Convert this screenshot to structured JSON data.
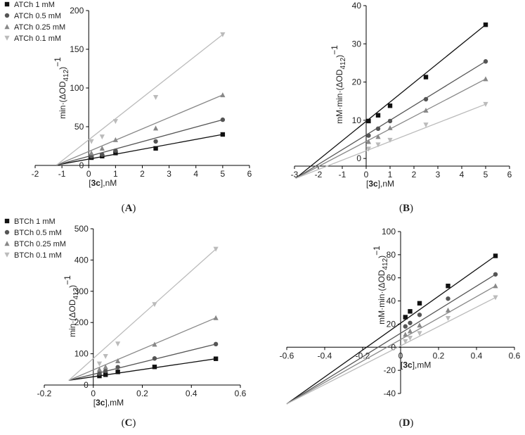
{
  "colors": {
    "series": [
      "#111111",
      "#555555",
      "#888888",
      "#bbbbbb"
    ],
    "axis": "#000000"
  },
  "chart_data": [
    {
      "panel": "A",
      "panel_label": "(A)",
      "type": "scatter",
      "fit_lines": true,
      "legend_position": "top-left",
      "xlabel_prefix": "[3c]",
      "xlabel_suffix": ",nM",
      "ylabel": "min·(ΔOD412)−1",
      "xlim": [
        -2,
        6
      ],
      "ylim": [
        0,
        200
      ],
      "xticks": [
        -2,
        -1,
        0,
        1,
        2,
        3,
        4,
        5,
        6
      ],
      "yticks": [
        0,
        50,
        100,
        150,
        200
      ],
      "fit_x_start": -1.2,
      "series": [
        {
          "name": "ATCh 1 mM",
          "marker": "square",
          "x": [
            0.1,
            0.5,
            1,
            2.5,
            5
          ],
          "y": [
            10,
            12,
            16,
            22,
            40
          ],
          "line": [
            [
              -1.2,
              0.5
            ],
            [
              5,
              40
            ]
          ]
        },
        {
          "name": "ATCh 0.5 mM",
          "marker": "circle",
          "x": [
            0.1,
            0.5,
            1,
            2.5,
            5
          ],
          "y": [
            12,
            14,
            19,
            31,
            59
          ],
          "line": [
            [
              -1.2,
              0.5
            ],
            [
              5,
              59
            ]
          ]
        },
        {
          "name": "ATCh 0.25 mM",
          "marker": "triangle-up",
          "x": [
            0.1,
            0.5,
            1,
            2.5,
            5
          ],
          "y": [
            16,
            22,
            33,
            48,
            91
          ],
          "line": [
            [
              -1.2,
              0.5
            ],
            [
              5,
              91
            ]
          ]
        },
        {
          "name": "ATCh 0.1 mM",
          "marker": "triangle-down",
          "x": [
            0.1,
            0.5,
            1,
            2.5,
            5
          ],
          "y": [
            31,
            37,
            57,
            88,
            169
          ],
          "line": [
            [
              -1.2,
              0.5
            ],
            [
              5,
              169
            ]
          ]
        }
      ]
    },
    {
      "panel": "B",
      "panel_label": "(B)",
      "type": "scatter",
      "fit_lines": true,
      "legend_position": "none",
      "xlabel_prefix": "[3c]",
      "xlabel_suffix": ",nM",
      "ylabel": "mM·min·(ΔOD412)−1",
      "xlim": [
        -3,
        6
      ],
      "ylim": [
        -2,
        40
      ],
      "xticks": [
        -3,
        -2,
        -1,
        0,
        1,
        2,
        3,
        4,
        5,
        6
      ],
      "yticks": [
        0,
        10,
        20,
        30,
        40
      ],
      "series": [
        {
          "name": "ATCh 1 mM",
          "marker": "square",
          "x": [
            0.1,
            0.5,
            1,
            2.5,
            5
          ],
          "y": [
            9.8,
            11.3,
            13.8,
            21.3,
            35
          ],
          "line": [
            [
              -2.95,
              -5.2
            ],
            [
              5,
              35
            ]
          ]
        },
        {
          "name": "ATCh 0.5 mM",
          "marker": "circle",
          "x": [
            0.1,
            0.5,
            1,
            2.5,
            5
          ],
          "y": [
            6,
            7.8,
            9.8,
            15.5,
            25.4
          ],
          "line": [
            [
              -2.95,
              -5.2
            ],
            [
              5,
              25.4
            ]
          ]
        },
        {
          "name": "ATCh 0.25 mM",
          "marker": "triangle-up",
          "x": [
            0.1,
            0.5,
            1,
            2.5,
            5
          ],
          "y": [
            4.4,
            5.7,
            8,
            12.6,
            20.8
          ],
          "line": [
            [
              -2.95,
              -5.2
            ],
            [
              5,
              20.8
            ]
          ]
        },
        {
          "name": "ATCh 0.1 mM",
          "marker": "triangle-down",
          "x": [
            0.1,
            0.5,
            1,
            2.5,
            5
          ],
          "y": [
            2.5,
            3.6,
            4.8,
            8.8,
            14.2
          ],
          "line": [
            [
              -2.95,
              -5.2
            ],
            [
              5,
              14.2
            ]
          ]
        }
      ]
    },
    {
      "panel": "C",
      "panel_label": "(C)",
      "type": "scatter",
      "fit_lines": true,
      "legend_position": "top-left",
      "xlabel_prefix": "[3c]",
      "xlabel_suffix": ",mM",
      "ylabel": "min·(ΔOD412)−1",
      "xlim": [
        -0.2,
        0.6
      ],
      "ylim": [
        0,
        500
      ],
      "xticks": [
        -0.2,
        0,
        0.2,
        0.4,
        0.6
      ],
      "yticks": [
        0,
        100,
        200,
        300,
        400,
        500
      ],
      "series": [
        {
          "name": "BTCh 1 mM",
          "marker": "square",
          "x": [
            0.025,
            0.05,
            0.1,
            0.25,
            0.5
          ],
          "y": [
            29,
            33,
            42,
            58,
            84
          ],
          "line": [
            [
              -0.1,
              15
            ],
            [
              0.5,
              84
            ]
          ]
        },
        {
          "name": "BTCh 0.5 mM",
          "marker": "circle",
          "x": [
            0.025,
            0.05,
            0.1,
            0.25,
            0.5
          ],
          "y": [
            37,
            45,
            57,
            85,
            131
          ],
          "line": [
            [
              -0.1,
              15
            ],
            [
              0.5,
              131
            ]
          ]
        },
        {
          "name": "BTCh 0.25 mM",
          "marker": "triangle-up",
          "x": [
            0.025,
            0.05,
            0.1,
            0.25,
            0.5
          ],
          "y": [
            50,
            58,
            77,
            130,
            215
          ],
          "line": [
            [
              -0.1,
              15
            ],
            [
              0.5,
              215
            ]
          ]
        },
        {
          "name": "BTCh 0.1 mM",
          "marker": "triangle-down",
          "x": [
            0.025,
            0.05,
            0.1,
            0.25,
            0.5
          ],
          "y": [
            68,
            92,
            132,
            258,
            435
          ],
          "line": [
            [
              -0.1,
              15
            ],
            [
              0.5,
              435
            ]
          ]
        }
      ]
    },
    {
      "panel": "D",
      "panel_label": "(D)",
      "type": "scatter",
      "fit_lines": true,
      "legend_position": "none",
      "xlabel_prefix": "[3c]",
      "xlabel_suffix": ",mM",
      "ylabel": "mM·min·(ΔOD412)−1",
      "xlim": [
        -0.6,
        0.6
      ],
      "ylim": [
        -40,
        100
      ],
      "xticks": [
        -0.6,
        -0.4,
        -0.2,
        0,
        0.2,
        0.4,
        0.6
      ],
      "yticks": [
        -40,
        -20,
        0,
        20,
        40,
        60,
        80,
        100
      ],
      "series": [
        {
          "name": "BTCh 1 mM",
          "marker": "square",
          "x": [
            0.025,
            0.05,
            0.1,
            0.25,
            0.5
          ],
          "y": [
            26,
            31,
            38,
            53,
            79
          ],
          "line": [
            [
              -0.6,
              -49
            ],
            [
              0.5,
              79
            ]
          ]
        },
        {
          "name": "BTCh 0.5 mM",
          "marker": "circle",
          "x": [
            0.025,
            0.05,
            0.1,
            0.25,
            0.5
          ],
          "y": [
            18,
            21,
            28,
            42,
            63
          ],
          "line": [
            [
              -0.6,
              -49
            ],
            [
              0.5,
              63
            ]
          ]
        },
        {
          "name": "BTCh 0.25 mM",
          "marker": "triangle-up",
          "x": [
            0.025,
            0.05,
            0.1,
            0.25,
            0.5
          ],
          "y": [
            11,
            14,
            19,
            32,
            53
          ],
          "line": [
            [
              -0.6,
              -49
            ],
            [
              0.5,
              53
            ]
          ]
        },
        {
          "name": "BTCh 0.1 mM",
          "marker": "triangle-down",
          "x": [
            0.025,
            0.05,
            0.1,
            0.25,
            0.5
          ],
          "y": [
            5,
            8,
            12,
            25,
            43
          ],
          "line": [
            [
              -0.6,
              -49
            ],
            [
              0.5,
              43
            ]
          ]
        }
      ]
    }
  ]
}
